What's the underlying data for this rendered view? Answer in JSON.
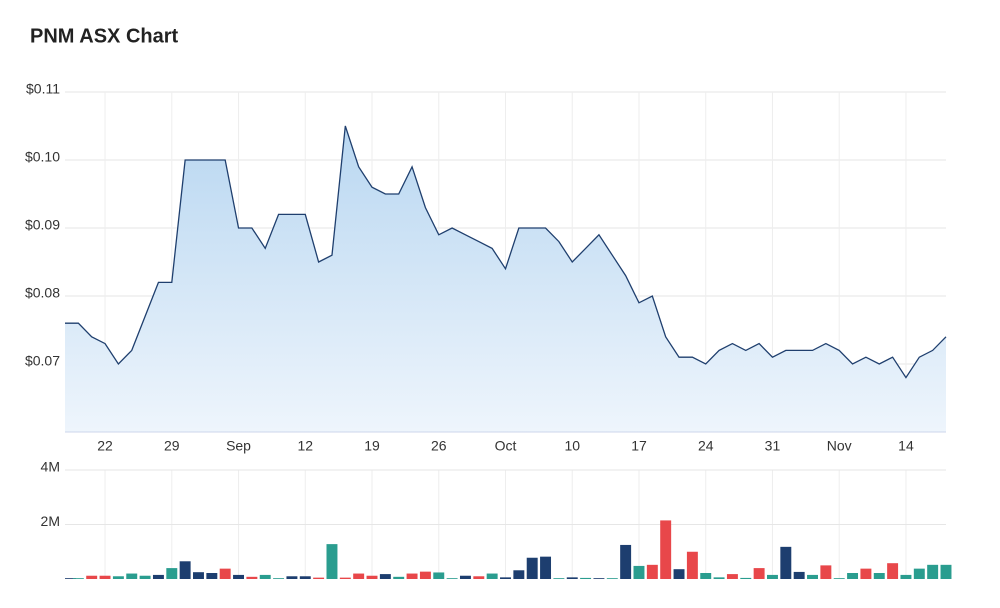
{
  "chart_data": [
    {
      "type": "area",
      "title": "PNM ASX Chart",
      "color": "#1f3f6e",
      "fill": "#bcd9f2",
      "grid": true,
      "categories": [
        null,
        null,
        null,
        "22",
        null,
        null,
        null,
        null,
        "29",
        null,
        null,
        null,
        null,
        "Sep",
        null,
        null,
        null,
        null,
        "12",
        null,
        null,
        null,
        null,
        "19",
        null,
        null,
        null,
        null,
        "26",
        null,
        null,
        null,
        null,
        "Oct",
        null,
        null,
        null,
        null,
        "10",
        null,
        null,
        null,
        null,
        "17",
        null,
        null,
        null,
        null,
        "24",
        null,
        null,
        null,
        null,
        "31",
        null,
        null,
        null,
        null,
        "Nov",
        null,
        null,
        null,
        null,
        "14",
        null,
        null,
        null
      ],
      "values": [
        0.076,
        0.076,
        0.074,
        0.073,
        0.07,
        0.072,
        0.077,
        0.082,
        0.082,
        0.1,
        0.1,
        0.1,
        0.1,
        0.09,
        0.09,
        0.087,
        0.092,
        0.092,
        0.092,
        0.085,
        0.086,
        0.105,
        0.099,
        0.096,
        0.095,
        0.095,
        0.099,
        0.093,
        0.089,
        0.09,
        0.089,
        0.088,
        0.087,
        0.084,
        0.09,
        0.09,
        0.09,
        0.088,
        0.085,
        0.087,
        0.089,
        0.086,
        0.083,
        0.079,
        0.08,
        0.074,
        0.071,
        0.071,
        0.07,
        0.072,
        0.073,
        0.072,
        0.073,
        0.071,
        0.072,
        0.072,
        0.072,
        0.073,
        0.072,
        0.07,
        0.071,
        0.07,
        0.071,
        0.068,
        0.071,
        0.072,
        0.074
      ],
      "ylim": [
        0.06,
        0.11
      ],
      "yticks": [
        {
          "value": 0.07,
          "label": "$0.07"
        },
        {
          "value": 0.08,
          "label": "$0.08"
        },
        {
          "value": 0.09,
          "label": "$0.09"
        },
        {
          "value": 0.1,
          "label": "$0.10"
        },
        {
          "value": 0.11,
          "label": "$0.11"
        }
      ]
    },
    {
      "type": "bar",
      "grid": true,
      "values": [
        30000,
        30000,
        120000,
        120000,
        100000,
        200000,
        120000,
        150000,
        400000,
        650000,
        250000,
        220000,
        380000,
        150000,
        80000,
        150000,
        30000,
        100000,
        100000,
        50000,
        1280000,
        50000,
        200000,
        120000,
        180000,
        80000,
        200000,
        270000,
        240000,
        30000,
        120000,
        100000,
        200000,
        60000,
        320000,
        780000,
        820000,
        30000,
        60000,
        40000,
        30000,
        30000,
        1250000,
        480000,
        520000,
        2150000,
        360000,
        1000000,
        220000,
        60000,
        180000,
        40000,
        400000,
        150000,
        1180000,
        260000,
        150000,
        500000,
        30000,
        220000,
        380000,
        220000,
        580000,
        150000,
        380000,
        520000,
        520000
      ],
      "colors": [
        "#1d3e6f",
        "#2a9d8f",
        "#e8474a",
        "#e8474a",
        "#2a9d8f",
        "#2a9d8f",
        "#2a9d8f",
        "#1d3e6f",
        "#2a9d8f",
        "#1d3e6f",
        "#1d3e6f",
        "#1d3e6f",
        "#e8474a",
        "#1d3e6f",
        "#e8474a",
        "#2a9d8f",
        "#2a9d8f",
        "#1d3e6f",
        "#1d3e6f",
        "#e8474a",
        "#2a9d8f",
        "#e8474a",
        "#e8474a",
        "#e8474a",
        "#1d3e6f",
        "#2a9d8f",
        "#e8474a",
        "#e8474a",
        "#2a9d8f",
        "#2a9d8f",
        "#1d3e6f",
        "#e8474a",
        "#2a9d8f",
        "#1d3e6f",
        "#1d3e6f",
        "#1d3e6f",
        "#1d3e6f",
        "#2a9d8f",
        "#1d3e6f",
        "#2a9d8f",
        "#1d3e6f",
        "#2a9d8f",
        "#1d3e6f",
        "#2a9d8f",
        "#e8474a",
        "#e8474a",
        "#1d3e6f",
        "#e8474a",
        "#2a9d8f",
        "#2a9d8f",
        "#e8474a",
        "#2a9d8f",
        "#e8474a",
        "#2a9d8f",
        "#1d3e6f",
        "#1d3e6f",
        "#2a9d8f",
        "#e8474a",
        "#2a9d8f",
        "#2a9d8f",
        "#e8474a",
        "#2a9d8f",
        "#e8474a",
        "#2a9d8f",
        "#2a9d8f",
        "#2a9d8f",
        "#2a9d8f"
      ],
      "ylim": [
        0,
        4000000
      ],
      "yticks": [
        {
          "value": 2000000,
          "label": "2M"
        },
        {
          "value": 4000000,
          "label": "4M"
        }
      ]
    }
  ]
}
